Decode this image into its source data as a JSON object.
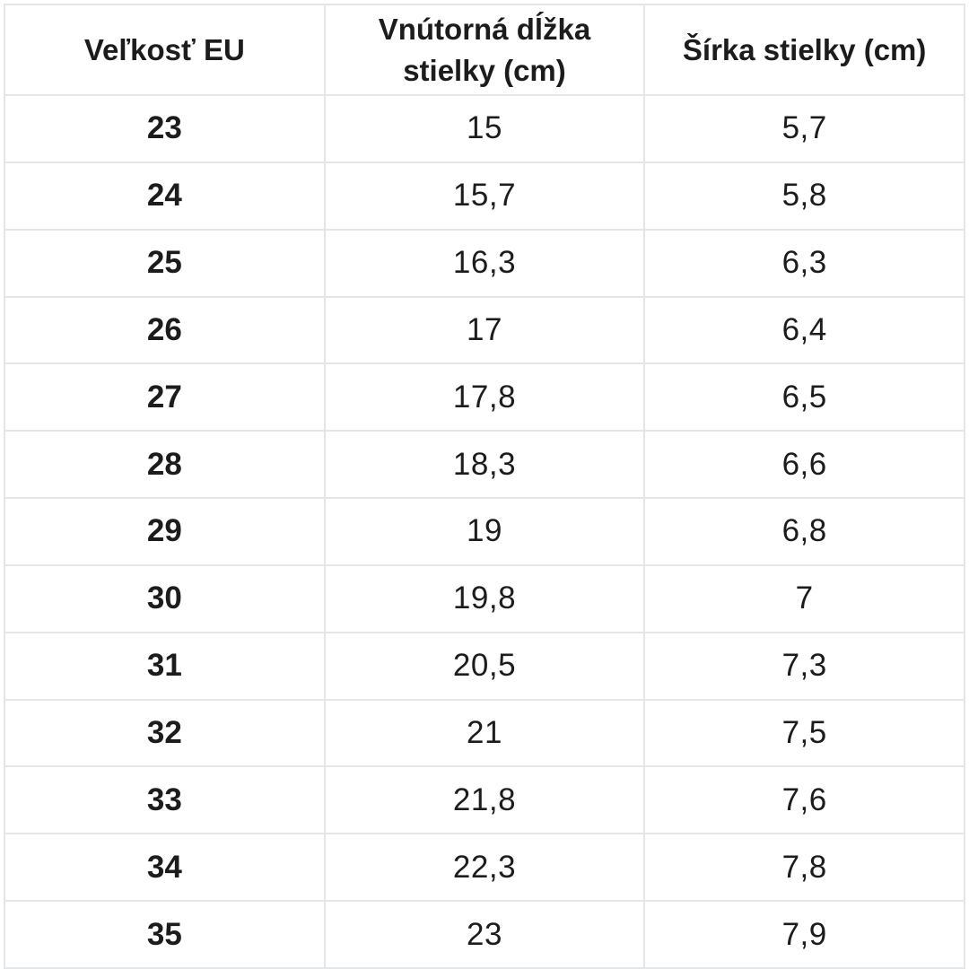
{
  "page": {
    "background": "#ffffff"
  },
  "table": {
    "headers": [
      "Veľkosť EU",
      "Vnútorná dĺžka stielky (cm)",
      "Šírka stielky (cm)"
    ],
    "rows": [
      [
        "23",
        "15",
        "5,7"
      ],
      [
        "24",
        "15,7",
        "5,8"
      ],
      [
        "25",
        "16,3",
        "6,3"
      ],
      [
        "26",
        "17",
        "6,4"
      ],
      [
        "27",
        "17,8",
        "6,5"
      ],
      [
        "28",
        "18,3",
        "6,6"
      ],
      [
        "29",
        "19",
        "6,8"
      ],
      [
        "30",
        "19,8",
        "7"
      ],
      [
        "31",
        "20,5",
        "7,3"
      ],
      [
        "32",
        "21",
        "7,5"
      ],
      [
        "33",
        "21,8",
        "7,6"
      ],
      [
        "34",
        "22,3",
        "7,8"
      ],
      [
        "35",
        "23",
        "7,9"
      ]
    ],
    "colors": {
      "border": "#e5e6e8",
      "text": "#1c1c1c",
      "background": "#ffffff"
    }
  },
  "chart_data": {
    "type": "table",
    "columns": [
      "Veľkosť EU",
      "Vnútorná dĺžka stielky (cm)",
      "Šírka stielky (cm)"
    ],
    "rows": [
      [
        23,
        15,
        5.7
      ],
      [
        24,
        15.7,
        5.8
      ],
      [
        25,
        16.3,
        6.3
      ],
      [
        26,
        17,
        6.4
      ],
      [
        27,
        17.8,
        6.5
      ],
      [
        28,
        18.3,
        6.6
      ],
      [
        29,
        19,
        6.8
      ],
      [
        30,
        19.8,
        7
      ],
      [
        31,
        20.5,
        7.3
      ],
      [
        32,
        21,
        7.5
      ],
      [
        33,
        21.8,
        7.6
      ],
      [
        34,
        22.3,
        7.8
      ],
      [
        35,
        23,
        7.9
      ]
    ],
    "decimal_separator": ",",
    "grid": true,
    "legend_position": "none"
  }
}
